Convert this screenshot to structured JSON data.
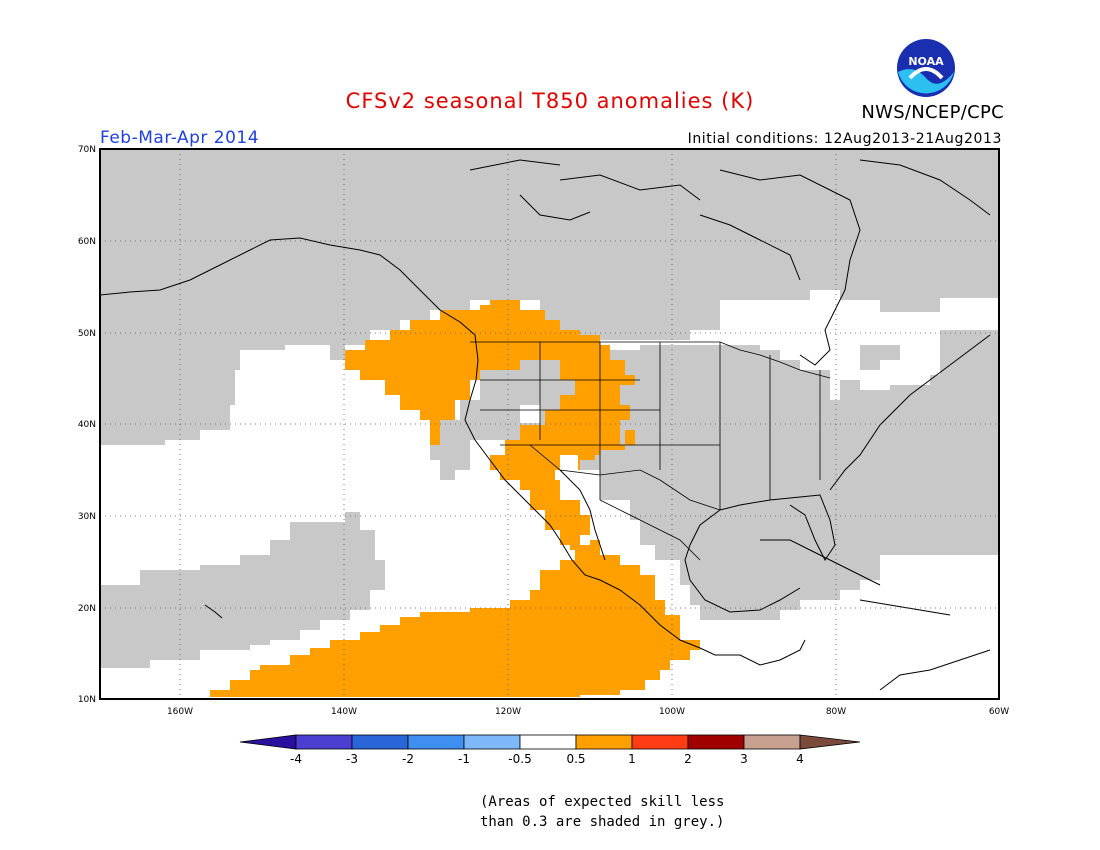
{
  "header": {
    "title": "CFSv2 seasonal T850 anomalies (K)",
    "season": "Feb-Mar-Apr 2014",
    "initial_conditions": "Initial conditions: 12Aug2013-21Aug2013",
    "agency": "NWS/NCEP/CPC",
    "logo_text": "NOAA"
  },
  "map": {
    "lat_labels": [
      "70N",
      "60N",
      "50N",
      "40N",
      "30N",
      "20N",
      "10N"
    ],
    "lon_labels": [
      "160W",
      "140W",
      "120W",
      "100W",
      "80W",
      "60W"
    ],
    "colors": {
      "skill_mask": "#c8c8c8",
      "warm_anomaly": "#ffa000",
      "neutral": "#ffffff"
    }
  },
  "colorbar": {
    "labels": [
      "-4",
      "-3",
      "-2",
      "-1",
      "-0.5",
      "0.5",
      "1",
      "2",
      "3",
      "4"
    ],
    "colors": [
      "#2a10a0",
      "#4a3fd0",
      "#2a66d8",
      "#3f8ff0",
      "#7fb8f8",
      "#ffffff",
      "#ffa000",
      "#ff3c14",
      "#a00000",
      "#c8a090",
      "#7a4a3a"
    ]
  },
  "footnote": {
    "line1": "(Areas of expected skill less",
    "line2": "than 0.3 are shaded in grey.)"
  }
}
